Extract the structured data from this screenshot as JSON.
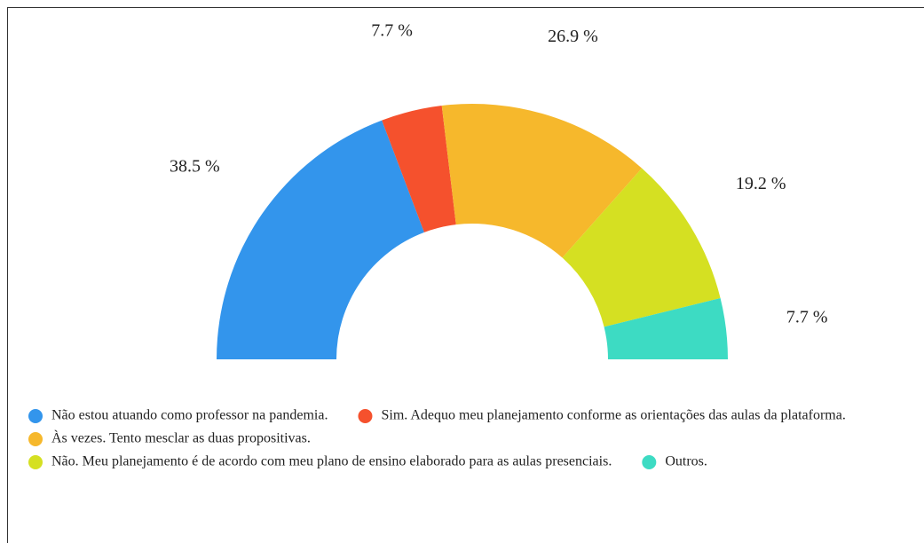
{
  "chart_data": {
    "type": "pie",
    "style": "semi-donut",
    "categories": [
      "Não estou atuando como professor na pandemia.",
      "Sim. Adequo meu planejamento conforme as orientações das aulas da plataforma.",
      "Às vezes. Tento mesclar as duas propositivas.",
      "Não. Meu planejamento é de acordo com meu plano de ensino elaborado para as aulas presenciais.",
      "Outros."
    ],
    "values": [
      38.5,
      7.7,
      26.9,
      19.2,
      7.7
    ],
    "value_labels": [
      "38.5 %",
      "7.7 %",
      "26.9 %",
      "19.2 %",
      "7.7 %"
    ],
    "colors": [
      "#3395ec",
      "#f5512d",
      "#f6b82c",
      "#d5e022",
      "#3ddbc3"
    ],
    "legend": "bottom"
  }
}
